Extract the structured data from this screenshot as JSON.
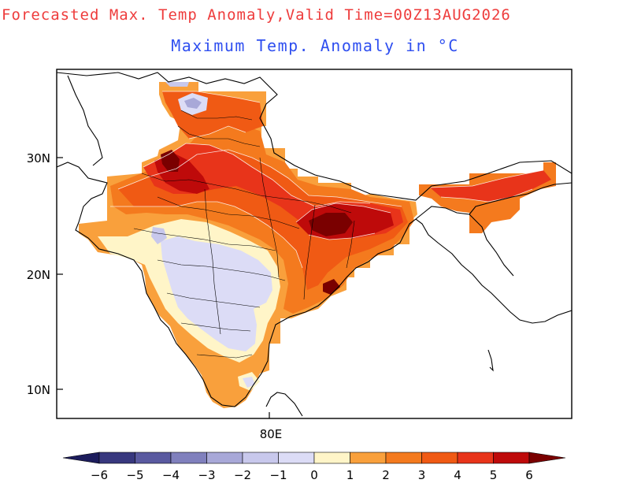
{
  "title": "Forecasted Max. Temp Anomaly,Valid Time=00Z13AUG2026",
  "subtitle": "Maximum Temp. Anomaly in °C",
  "colors": {
    "title": "#ee3c3c",
    "subtitle": "#2f4ff0",
    "frame": "#000000"
  },
  "map": {
    "y_ticks": [
      "30N",
      "20N",
      "10N"
    ],
    "x_ticks": [
      "80E"
    ]
  },
  "colorbar": {
    "labels": [
      "-6",
      "-5",
      "-4",
      "-3",
      "-2",
      "-1",
      "0",
      "1",
      "2",
      "3",
      "4",
      "5",
      "6"
    ],
    "colors": [
      "#1c1c5c",
      "#38387e",
      "#5a5aa0",
      "#8080bd",
      "#a8a8d8",
      "#c8c8ec",
      "#dcdcf6",
      "#fff5c8",
      "#f9a03c",
      "#f47a1e",
      "#f05a14",
      "#e8341a",
      "#be0a0a",
      "#7a0000"
    ]
  }
}
